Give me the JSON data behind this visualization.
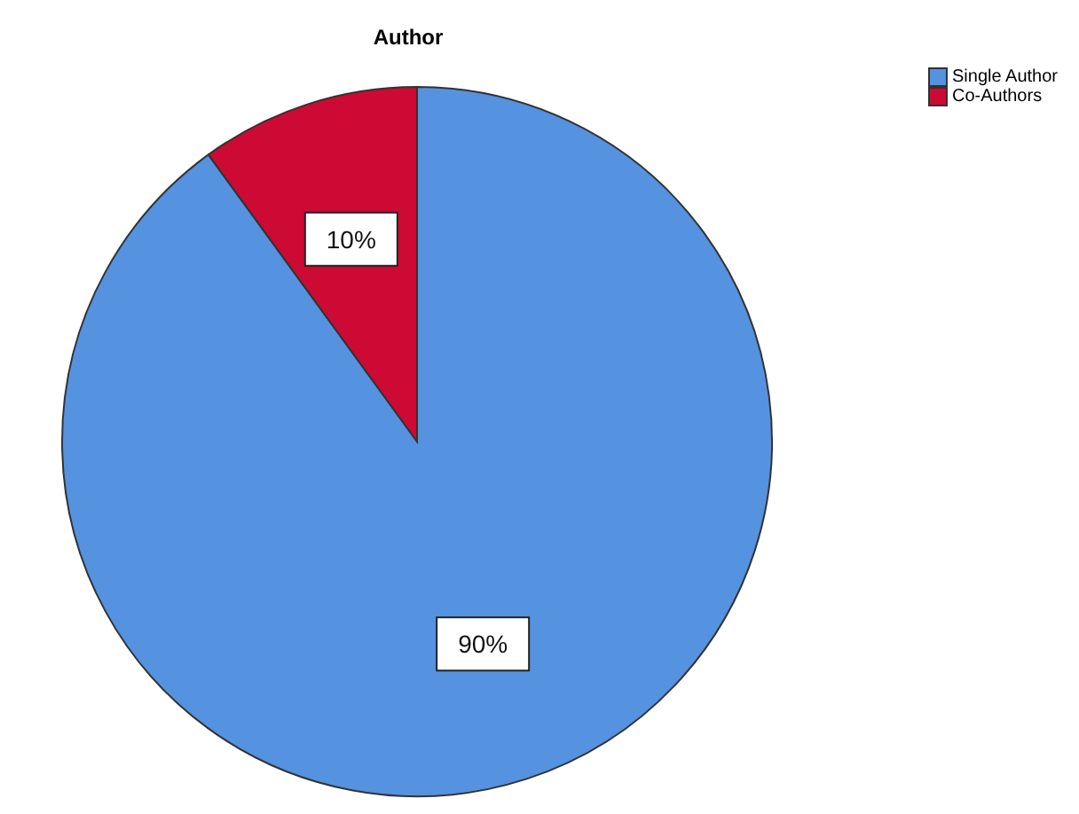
{
  "chart_data": {
    "type": "pie",
    "title": "Author",
    "categories": [
      "Single Author",
      "Co-Authors"
    ],
    "values": [
      90,
      10
    ],
    "colors": [
      "#5592e0",
      "#cc0a33"
    ],
    "value_labels": [
      "90%",
      "10%"
    ],
    "legend": "top right"
  }
}
